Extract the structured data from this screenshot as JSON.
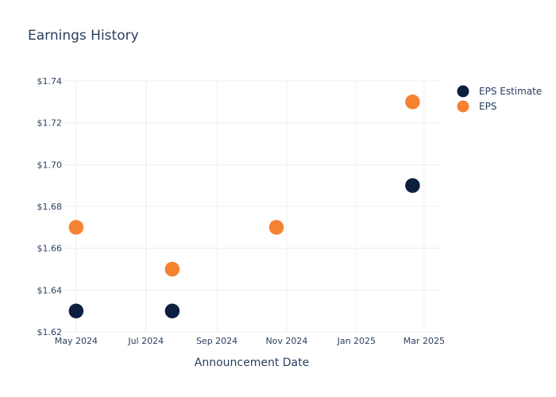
{
  "chart_data": {
    "type": "scatter",
    "title": "Earnings History",
    "xlabel": "Announcement Date",
    "ylabel": "",
    "x_ticks": [
      {
        "label": "May 2024",
        "date": "2024-05-01"
      },
      {
        "label": "Jul 2024",
        "date": "2024-07-01"
      },
      {
        "label": "Sep 2024",
        "date": "2024-09-01"
      },
      {
        "label": "Nov 2024",
        "date": "2024-11-01"
      },
      {
        "label": "Jan 2025",
        "date": "2025-01-01"
      },
      {
        "label": "Mar 2025",
        "date": "2025-03-01"
      }
    ],
    "xlim": [
      "2024-04-20",
      "2025-03-15"
    ],
    "ylim": [
      1.62,
      1.74
    ],
    "y_ticks": [
      {
        "label": "$1.62",
        "value": 1.62
      },
      {
        "label": "$1.64",
        "value": 1.64
      },
      {
        "label": "$1.66",
        "value": 1.66
      },
      {
        "label": "$1.68",
        "value": 1.68
      },
      {
        "label": "$1.70",
        "value": 1.7
      },
      {
        "label": "$1.72",
        "value": 1.72
      },
      {
        "label": "$1.74",
        "value": 1.74
      }
    ],
    "grid": true,
    "legend_position": "top-right",
    "series": [
      {
        "name": "EPS Estimate",
        "color": "#0b1f3f",
        "points": [
          {
            "x": "2024-05-01",
            "y": 1.63
          },
          {
            "x": "2024-07-24",
            "y": 1.63
          },
          {
            "x": "2024-10-23",
            "y": 1.67
          },
          {
            "x": "2025-02-19",
            "y": 1.69
          }
        ]
      },
      {
        "name": "EPS",
        "color": "#f58231",
        "points": [
          {
            "x": "2024-05-01",
            "y": 1.67
          },
          {
            "x": "2024-07-24",
            "y": 1.65
          },
          {
            "x": "2024-10-23",
            "y": 1.67
          },
          {
            "x": "2025-02-19",
            "y": 1.73
          }
        ]
      }
    ]
  }
}
